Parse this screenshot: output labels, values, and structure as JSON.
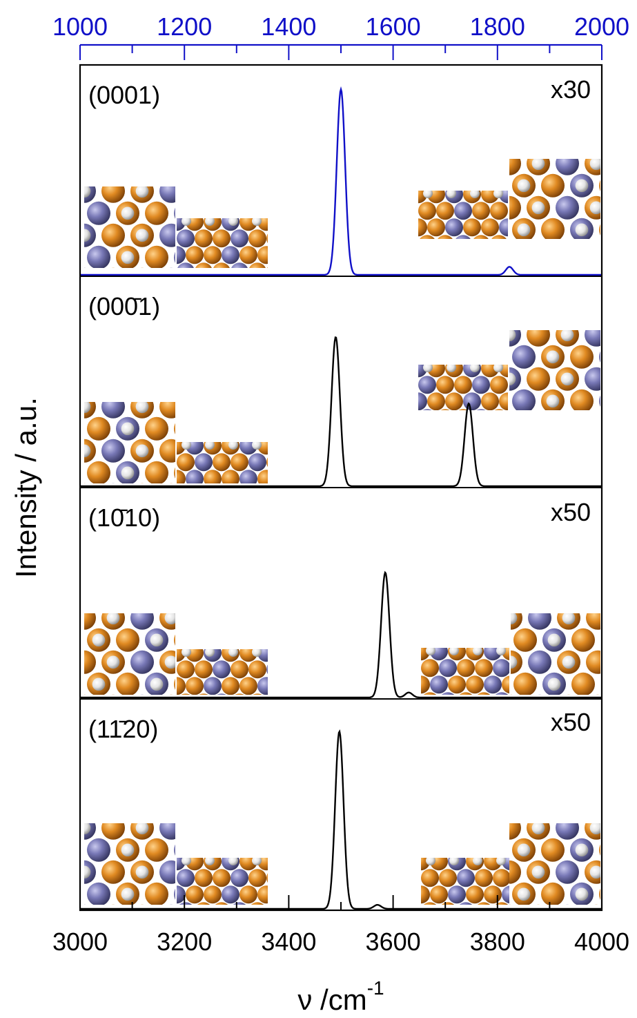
{
  "chart_data": {
    "type": "line",
    "ylabel": "Intensity / a.u.",
    "xlabel": "ν /cm",
    "xlabel_superscript": "-1",
    "x_bottom": {
      "range": [
        3000,
        4000
      ],
      "ticks": [
        "3000",
        "3200",
        "3400",
        "3600",
        "3800",
        "4000"
      ],
      "minor_step": 100,
      "color": "#000000"
    },
    "x_top": {
      "range": [
        1000,
        2000
      ],
      "ticks": [
        "1000",
        "1200",
        "1400",
        "1600",
        "1800",
        "2000"
      ],
      "minor_step": 100,
      "color": "#1010c8"
    },
    "grid": false,
    "panels": [
      {
        "label": "(0001)",
        "scale": "x30",
        "axis": "top",
        "color": "#1010c8",
        "peaks": [
          {
            "x": 1500,
            "height": 0.92,
            "width": 8
          },
          {
            "x": 1823,
            "height": 0.04,
            "width": 7
          }
        ]
      },
      {
        "label": "(000̄1)",
        "scale": "",
        "axis": "bottom",
        "color": "#000000",
        "peaks": [
          {
            "x": 3490,
            "height": 0.74,
            "width": 8
          },
          {
            "x": 3745,
            "height": 0.41,
            "width": 8
          }
        ]
      },
      {
        "label": "(10̄10)",
        "scale": "x50",
        "axis": "bottom",
        "color": "#000000",
        "peaks": [
          {
            "x": 3585,
            "height": 0.62,
            "width": 8
          },
          {
            "x": 3630,
            "height": 0.025,
            "width": 7
          }
        ]
      },
      {
        "label": "(11̄20)",
        "scale": "x50",
        "axis": "bottom",
        "color": "#000000",
        "peaks": [
          {
            "x": 3497,
            "height": 0.88,
            "width": 8
          },
          {
            "x": 3570,
            "height": 0.02,
            "width": 7
          }
        ]
      }
    ]
  },
  "colors": {
    "ga": "#d9831c",
    "n": "#7575b2",
    "h": "#eaeaea"
  },
  "icons": [
    "surface-top-view-icon",
    "surface-side-view-icon"
  ]
}
